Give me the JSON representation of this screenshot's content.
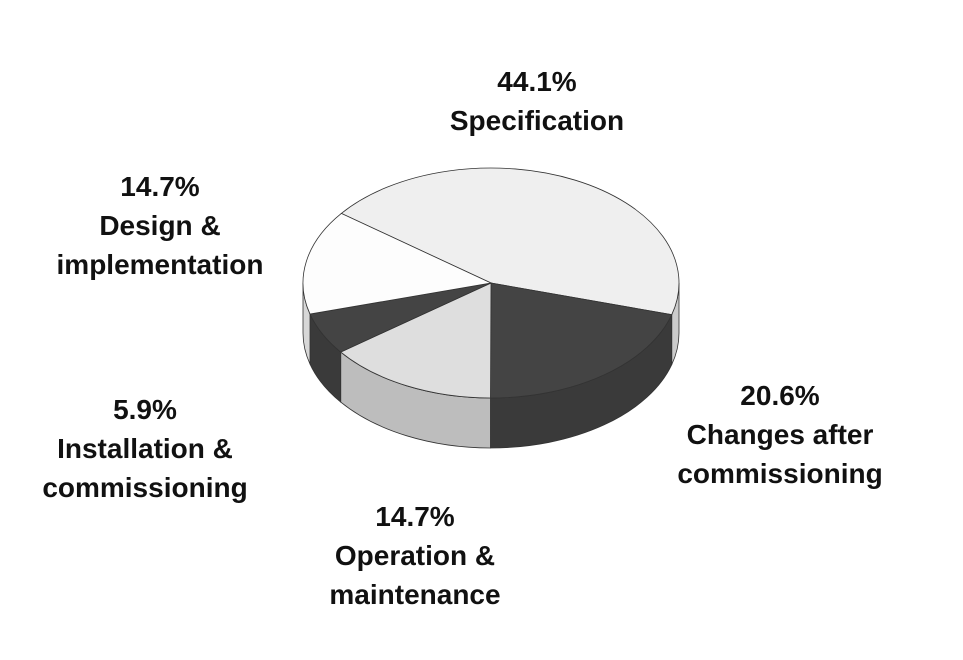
{
  "chart_data": {
    "type": "pie3d",
    "categories": [
      "Specification",
      "Changes after commissioning",
      "Operation & maintenance",
      "Installation & commissioning",
      "Design & implementation"
    ],
    "values": [
      44.1,
      20.6,
      14.7,
      5.9,
      14.7
    ],
    "value_labels": [
      "44.1%",
      "20.6%",
      "14.7%",
      "5.9%",
      "14.7%"
    ],
    "colors": [
      "#efefef",
      "#444444",
      "#dedede",
      "#444444",
      "#fdfdfd"
    ]
  }
}
